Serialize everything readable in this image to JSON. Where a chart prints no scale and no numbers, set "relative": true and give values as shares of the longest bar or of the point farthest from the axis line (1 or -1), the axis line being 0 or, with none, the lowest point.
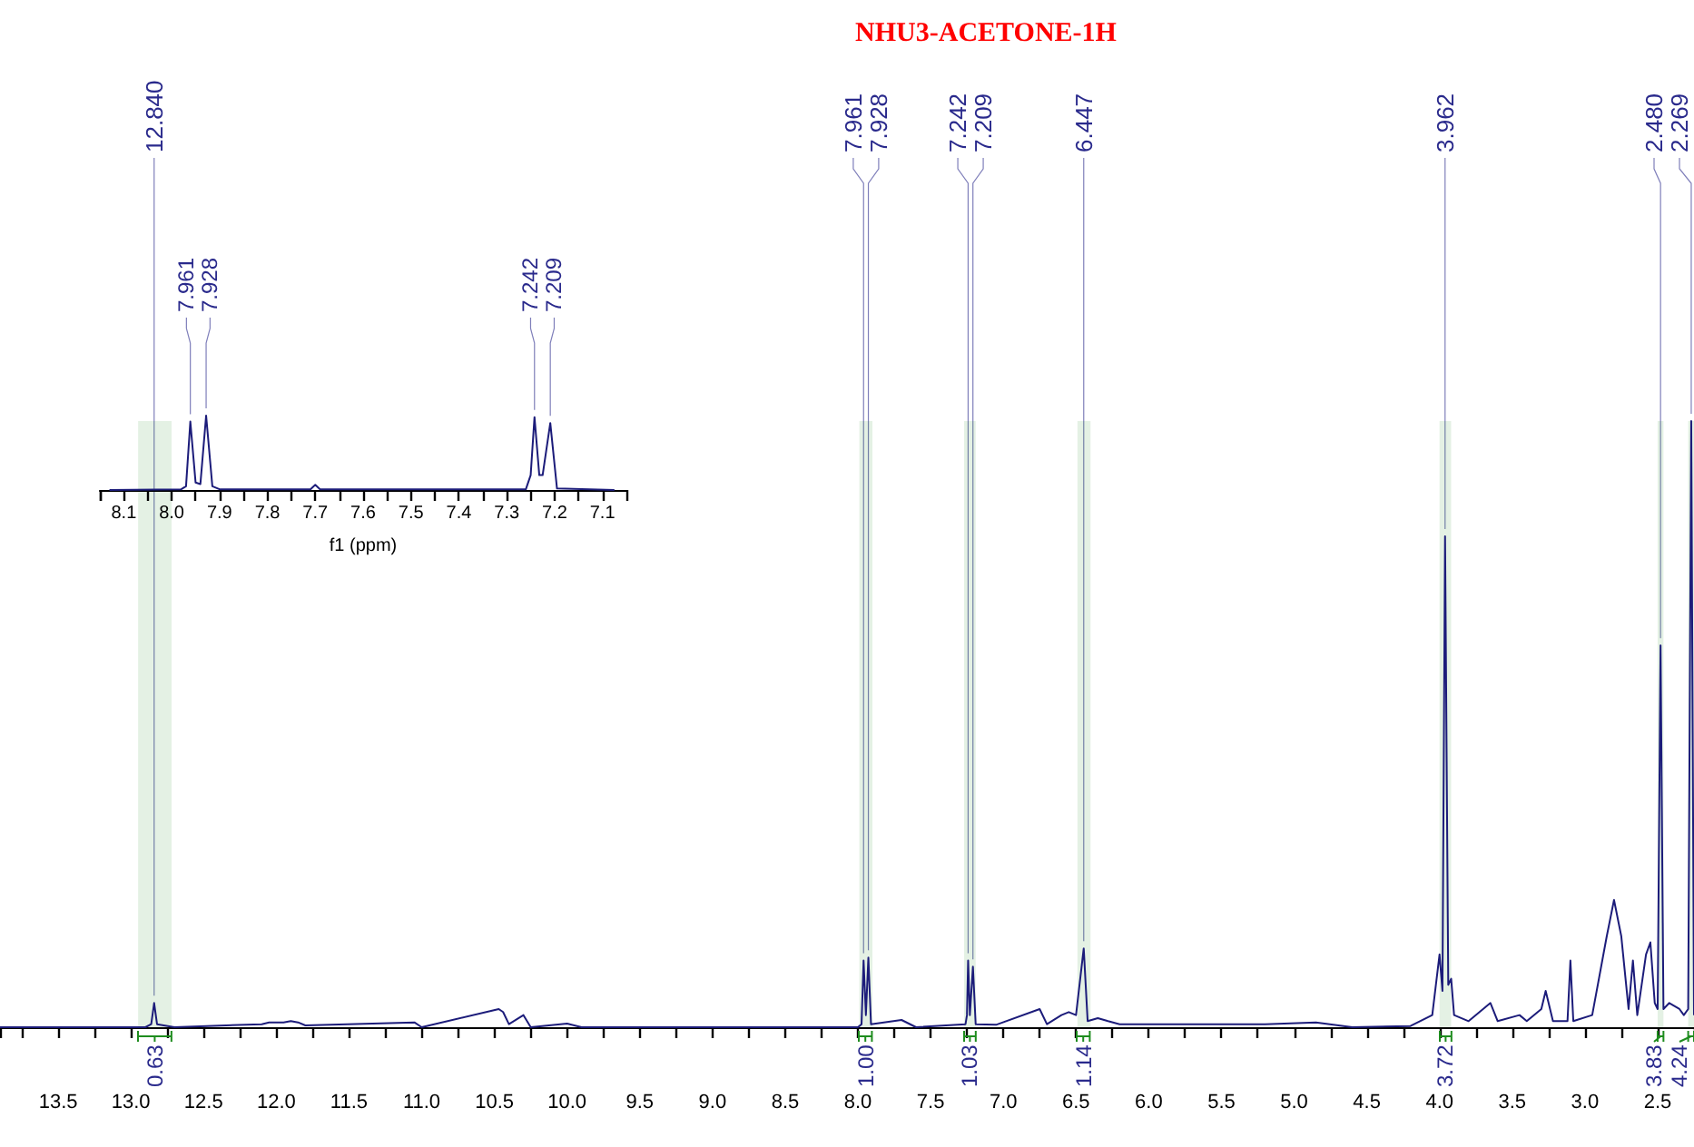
{
  "chart_data": [
    {
      "type": "line",
      "title": "NHU3-ACETONE-1H",
      "relative": true,
      "xlim": [
        13.9,
        2.25
      ],
      "xticks": [
        {
          "value": 13.75,
          "label": null
        },
        {
          "value": 13.5,
          "label": "13.5"
        },
        {
          "value": 13.25,
          "label": null
        },
        {
          "value": 13,
          "label": "13.0"
        },
        {
          "value": 12.75,
          "label": null
        },
        {
          "value": 12.5,
          "label": "12.5"
        },
        {
          "value": 12.25,
          "label": null
        },
        {
          "value": 12,
          "label": "12.0"
        },
        {
          "value": 11.75,
          "label": null
        },
        {
          "value": 11.5,
          "label": "11.5"
        },
        {
          "value": 11.25,
          "label": null
        },
        {
          "value": 11,
          "label": "11.0"
        },
        {
          "value": 10.75,
          "label": null
        },
        {
          "value": 10.5,
          "label": "10.5"
        },
        {
          "value": 10.25,
          "label": null
        },
        {
          "value": 10,
          "label": "10.0"
        },
        {
          "value": 9.75,
          "label": null
        },
        {
          "value": 9.5,
          "label": "9.5"
        },
        {
          "value": 9.25,
          "label": null
        },
        {
          "value": 9,
          "label": "9.0"
        },
        {
          "value": 8.75,
          "label": null
        },
        {
          "value": 8.5,
          "label": "8.5"
        },
        {
          "value": 8.25,
          "label": null
        },
        {
          "value": 8,
          "label": "8.0"
        },
        {
          "value": 7.75,
          "label": null
        },
        {
          "value": 7.5,
          "label": "7.5"
        },
        {
          "value": 7.25,
          "label": null
        },
        {
          "value": 7,
          "label": "7.0"
        },
        {
          "value": 6.75,
          "label": null
        },
        {
          "value": 6.5,
          "label": "6.5"
        },
        {
          "value": 6.25,
          "label": null
        },
        {
          "value": 6,
          "label": "6.0"
        },
        {
          "value": 5.75,
          "label": null
        },
        {
          "value": 5.5,
          "label": "5.5"
        },
        {
          "value": 5.25,
          "label": null
        },
        {
          "value": 5,
          "label": "5.0"
        },
        {
          "value": 4.75,
          "label": null
        },
        {
          "value": 4.5,
          "label": "4.5"
        },
        {
          "value": 4.25,
          "label": null
        },
        {
          "value": 4,
          "label": "4.0"
        },
        {
          "value": 3.75,
          "label": null
        },
        {
          "value": 3.5,
          "label": "3.5"
        },
        {
          "value": 3.25,
          "label": null
        },
        {
          "value": 3,
          "label": "3.0"
        },
        {
          "value": 2.75,
          "label": null
        },
        {
          "value": 2.5,
          "label": "2.5"
        }
      ],
      "series": [
        {
          "color": "#1c1c7a",
          "x": [
            13.9,
            12.9,
            12.86,
            12.84,
            12.82,
            12.7,
            12.1,
            12.05,
            11.95,
            11.9,
            11.85,
            11.8,
            11.05,
            11.0,
            10.47,
            10.44,
            10.4,
            10.3,
            10.25,
            10.0,
            9.9,
            8.0,
            7.975,
            7.961,
            7.945,
            7.928,
            7.91,
            7.7,
            7.6,
            7.26,
            7.25,
            7.242,
            7.23,
            7.209,
            7.19,
            7.05,
            6.75,
            6.7,
            6.6,
            6.55,
            6.5,
            6.447,
            6.42,
            6.35,
            6.28,
            6.2,
            5.2,
            4.85,
            4.6,
            4.2,
            4.05,
            4.0,
            3.98,
            3.962,
            3.94,
            3.92,
            3.9,
            3.8,
            3.65,
            3.6,
            3.45,
            3.4,
            3.3,
            3.27,
            3.22,
            3.12,
            3.1,
            3.08,
            2.95,
            2.85,
            2.8,
            2.75,
            2.7,
            2.67,
            2.64,
            2.58,
            2.55,
            2.52,
            2.5,
            2.48,
            2.46,
            2.42,
            2.35,
            2.32,
            2.29,
            2.269,
            2.25
          ],
          "values": [
            0,
            0,
            0.005,
            0.04,
            0.005,
            0,
            0.005,
            0.008,
            0.008,
            0.01,
            0.008,
            0.003,
            0.008,
            0,
            0.03,
            0.025,
            0.005,
            0.02,
            0,
            0.006,
            0,
            0,
            0.005,
            0.11,
            0.02,
            0.115,
            0.005,
            0.012,
            0,
            0.005,
            0.02,
            0.11,
            0.02,
            0.1,
            0.005,
            0.004,
            0.03,
            0.005,
            0.02,
            0.025,
            0.02,
            0.13,
            0.01,
            0.015,
            0.01,
            0.005,
            0.005,
            0.008,
            0,
            0.002,
            0.02,
            0.12,
            0.06,
            0.81,
            0.07,
            0.08,
            0.02,
            0.01,
            0.04,
            0.01,
            0.02,
            0.01,
            0.03,
            0.06,
            0.01,
            0.01,
            0.11,
            0.01,
            0.02,
            0.15,
            0.21,
            0.15,
            0.03,
            0.11,
            0.02,
            0.12,
            0.14,
            0.04,
            0.03,
            0.63,
            0.03,
            0.04,
            0.03,
            0.02,
            0.03,
            1,
            0.02
          ]
        }
      ],
      "annotations": [
        {
          "text": "12.840",
          "x": 12.84,
          "y": 0.04
        },
        {
          "text": "7.961",
          "x": 7.961,
          "y": 0.11
        },
        {
          "text": "7.928",
          "x": 7.928,
          "y": 0.115
        },
        {
          "text": "7.242",
          "x": 7.242,
          "y": 0.11
        },
        {
          "text": "7.209",
          "x": 7.209,
          "y": 0.1
        },
        {
          "text": "6.447",
          "x": 6.447,
          "y": 0.13
        },
        {
          "text": "3.962",
          "x": 3.962,
          "y": 0.81
        },
        {
          "text": "2.480",
          "x": 2.48,
          "y": 0.63
        },
        {
          "text": "2.269",
          "x": 2.269,
          "y": 1
        }
      ],
      "bands": [
        {
          "axis": "x",
          "from": 12.95,
          "to": 12.72,
          "label": "0.63",
          "color": "#1e8c1e"
        },
        {
          "axis": "x",
          "from": 7.99,
          "to": 7.9,
          "label": "1.00",
          "color": "#1e8c1e"
        },
        {
          "axis": "x",
          "from": 7.27,
          "to": 7.19,
          "label": "1.03",
          "color": "#1e8c1e"
        },
        {
          "axis": "x",
          "from": 6.49,
          "to": 6.4,
          "label": "1.14",
          "color": "#1e8c1e"
        },
        {
          "axis": "x",
          "from": 4.0,
          "to": 3.92,
          "label": "3.72",
          "color": "#1e8c1e"
        },
        {
          "axis": "x",
          "from": 2.5,
          "to": 2.46,
          "label": "3.83",
          "color": "#1e8c1e"
        },
        {
          "axis": "x",
          "from": 2.29,
          "to": 2.25,
          "label": "4.24",
          "color": "#1e8c1e"
        }
      ]
    },
    {
      "type": "line",
      "relative": true,
      "xlabel": "f1 (ppm)",
      "xlim": [
        8.15,
        7.05
      ],
      "xticks": [
        {
          "value": 8.1,
          "label": "8.1"
        },
        {
          "value": 8.05,
          "label": null
        },
        {
          "value": 8,
          "label": "8.0"
        },
        {
          "value": 7.95,
          "label": null
        },
        {
          "value": 7.9,
          "label": "7.9"
        },
        {
          "value": 7.85,
          "label": null
        },
        {
          "value": 7.8,
          "label": "7.8"
        },
        {
          "value": 7.75,
          "label": null
        },
        {
          "value": 7.7,
          "label": "7.7"
        },
        {
          "value": 7.65,
          "label": null
        },
        {
          "value": 7.6,
          "label": "7.6"
        },
        {
          "value": 7.55,
          "label": null
        },
        {
          "value": 7.5,
          "label": "7.5"
        },
        {
          "value": 7.45,
          "label": null
        },
        {
          "value": 7.4,
          "label": "7.4"
        },
        {
          "value": 7.35,
          "label": null
        },
        {
          "value": 7.3,
          "label": "7.3"
        },
        {
          "value": 7.25,
          "label": null
        },
        {
          "value": 7.2,
          "label": "7.2"
        },
        {
          "value": 7.15,
          "label": null
        },
        {
          "value": 7.1,
          "label": "7.1"
        }
      ],
      "series": [
        {
          "color": "#1c1c7a",
          "x": [
            8.13,
            7.98,
            7.97,
            7.961,
            7.95,
            7.94,
            7.928,
            7.915,
            7.9,
            7.71,
            7.7,
            7.69,
            7.26,
            7.25,
            7.242,
            7.232,
            7.225,
            7.209,
            7.195,
            7.075
          ],
          "values": [
            0,
            0.01,
            0.05,
            0.92,
            0.1,
            0.08,
            1,
            0.05,
            0.01,
            0.01,
            0.07,
            0.01,
            0.01,
            0.2,
            0.98,
            0.2,
            0.2,
            0.9,
            0.02,
            0
          ]
        }
      ],
      "annotations": [
        {
          "text": "7.961",
          "x": 7.961,
          "y": 0.92
        },
        {
          "text": "7.928",
          "x": 7.928,
          "y": 1
        },
        {
          "text": "7.242",
          "x": 7.242,
          "y": 0.98
        },
        {
          "text": "7.209",
          "x": 7.209,
          "y": 0.9
        }
      ]
    }
  ]
}
